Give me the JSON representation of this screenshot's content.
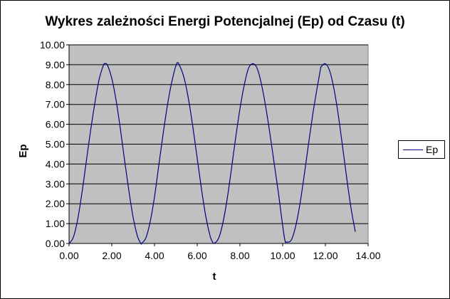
{
  "chart_data": {
    "type": "line",
    "title": "Wykres zależności Energi Potencjalnej (Ep) od Czasu (t)",
    "xlabel": "t",
    "ylabel": "Ep",
    "xlim": [
      0,
      14
    ],
    "ylim": [
      0,
      10
    ],
    "x_ticks": [
      "0.00",
      "2.00",
      "4.00",
      "6.00",
      "8.00",
      "10.00",
      "12.00",
      "14.00"
    ],
    "y_ticks": [
      "0.00",
      "1.00",
      "2.00",
      "3.00",
      "4.00",
      "5.00",
      "6.00",
      "7.00",
      "8.00",
      "9.00",
      "10.00"
    ],
    "grid": "horizontal major",
    "legend": "right",
    "plot_background": "#c0c0c0",
    "series": [
      {
        "name": "Ep",
        "color": "#000080",
        "x": [
          0.0,
          0.2,
          0.4,
          0.6,
          0.8,
          1.0,
          1.2,
          1.4,
          1.6,
          1.68,
          1.8,
          2.0,
          2.2,
          2.4,
          2.6,
          2.8,
          3.0,
          3.2,
          3.36,
          3.4,
          3.6,
          3.8,
          4.0,
          4.2,
          4.4,
          4.6,
          4.8,
          5.04,
          5.2,
          5.4,
          5.6,
          5.8,
          6.0,
          6.2,
          6.4,
          6.6,
          6.72,
          6.8,
          7.0,
          7.2,
          7.4,
          7.6,
          7.8,
          8.0,
          8.2,
          8.4,
          8.6,
          8.8,
          9.0,
          9.2,
          9.4,
          9.6,
          9.8,
          10.08,
          10.2,
          10.4,
          10.6,
          10.8,
          11.0,
          11.2,
          11.4,
          11.6,
          11.76,
          11.8,
          12.0,
          12.2,
          12.4,
          12.6,
          12.8,
          13.0,
          13.2,
          13.4
        ],
        "y": [
          0.0,
          0.31,
          1.19,
          2.52,
          4.08,
          5.63,
          7.02,
          8.23,
          8.95,
          9.06,
          8.97,
          8.31,
          7.22,
          5.78,
          4.18,
          2.65,
          1.31,
          0.37,
          0.0,
          0.01,
          0.29,
          1.11,
          2.35,
          3.93,
          5.49,
          6.93,
          8.09,
          9.06,
          8.89,
          8.27,
          7.21,
          5.83,
          4.28,
          2.73,
          1.37,
          0.39,
          0.07,
          0.01,
          0.26,
          1.03,
          2.23,
          3.74,
          5.33,
          6.78,
          7.97,
          8.82,
          9.05,
          8.83,
          8.05,
          6.92,
          5.55,
          4.05,
          2.55,
          0.3,
          0.08,
          0.17,
          0.83,
          1.93,
          3.37,
          4.93,
          6.44,
          7.75,
          8.72,
          8.89,
          9.05,
          8.69,
          7.79,
          6.49,
          4.91,
          3.28,
          1.78,
          0.59
        ]
      }
    ]
  }
}
